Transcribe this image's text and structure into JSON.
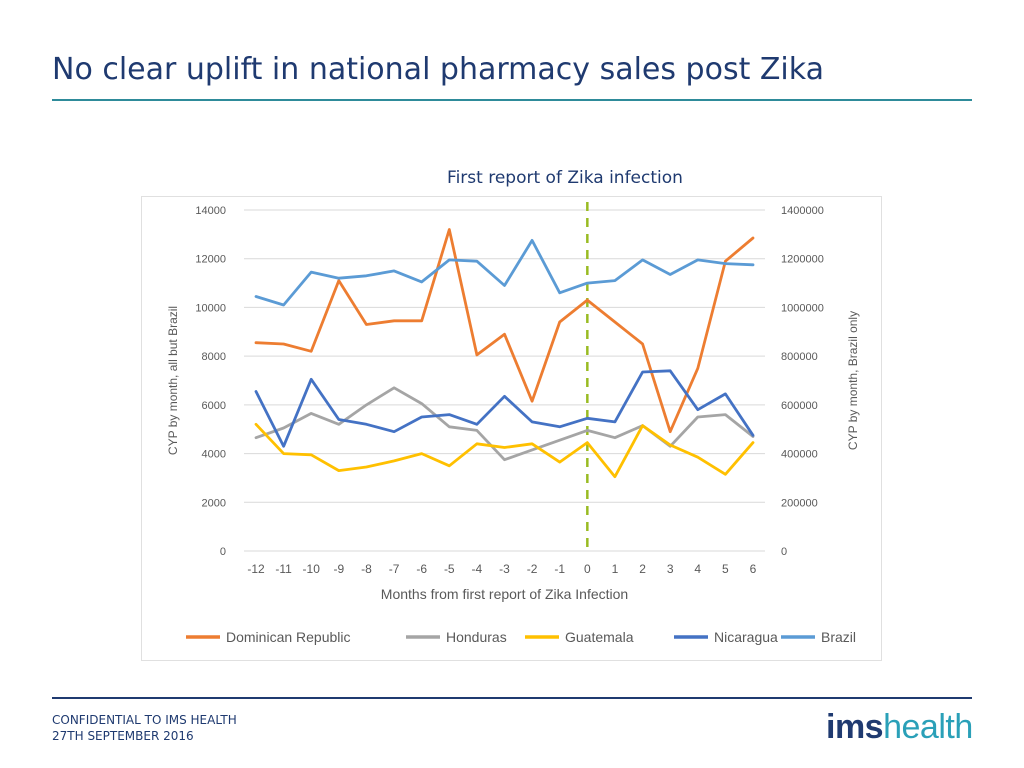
{
  "slide": {
    "title": "No clear uplift in national pharmacy sales post Zika",
    "footer_line1": "CONFIDENTIAL TO IMS HEALTH",
    "footer_line2": "27TH SEPTEMBER 2016",
    "logo_part1": "ims",
    "logo_part2": "health",
    "colors": {
      "title": "#1f3a70",
      "rule": "#2e8b9a",
      "logo_accent": "#2aa0b8"
    }
  },
  "chart_data": {
    "type": "line",
    "annotation": "First report of Zika infection",
    "xlabel": "Months from first report of Zika Infection",
    "ylabel_left": "CYP by month, all but Brazil",
    "ylabel_right": "CYP by month, Brazil only",
    "x": [
      -12,
      -11,
      -10,
      -9,
      -8,
      -7,
      -6,
      -5,
      -4,
      -3,
      -2,
      -1,
      0,
      1,
      2,
      3,
      4,
      5,
      6
    ],
    "x_tick_labels": [
      "-12",
      "-11",
      "-10",
      "-9",
      "-8",
      "-7",
      "-6",
      "-5",
      "-4",
      "-3",
      "-2",
      "-1",
      "0",
      "1",
      "2",
      "3",
      "4",
      "5",
      "6"
    ],
    "ylim_left": [
      0,
      14000
    ],
    "ylim_right": [
      0,
      1400000
    ],
    "y_ticks_left": [
      "0",
      "2000",
      "4000",
      "6000",
      "8000",
      "10000",
      "12000",
      "14000"
    ],
    "y_ticks_right": [
      "0",
      "200000",
      "400000",
      "600000",
      "800000",
      "1000000",
      "1200000",
      "1400000"
    ],
    "grid": true,
    "legend_position": "bottom",
    "marker_line": {
      "x": 0,
      "color": "#99bb22"
    },
    "series": [
      {
        "name": "Dominican Republic",
        "axis": "left",
        "color": "#ed7d31",
        "values": [
          8550,
          8500,
          8200,
          11100,
          9300,
          9450,
          9450,
          13200,
          8050,
          8900,
          6150,
          9400,
          10300,
          9400,
          8500,
          4900,
          7500,
          11900,
          12850
        ]
      },
      {
        "name": "Honduras",
        "axis": "left",
        "color": "#a5a5a5",
        "values": [
          4650,
          5050,
          5650,
          5200,
          6000,
          6700,
          6050,
          5100,
          4950,
          3750,
          4150,
          4550,
          4950,
          4650,
          5150,
          4300,
          5500,
          5600,
          4700
        ]
      },
      {
        "name": "Guatemala",
        "axis": "left",
        "color": "#ffc000",
        "values": [
          5200,
          4000,
          3950,
          3300,
          3450,
          3700,
          4000,
          3500,
          4400,
          4250,
          4400,
          3650,
          4450,
          3050,
          5150,
          4350,
          3850,
          3150,
          4450
        ]
      },
      {
        "name": "Nicaragua",
        "axis": "left",
        "color": "#4472c4",
        "values": [
          6550,
          4300,
          7050,
          5400,
          5200,
          4900,
          5500,
          5600,
          5200,
          6350,
          5300,
          5100,
          5450,
          5300,
          7350,
          7400,
          5800,
          6450,
          4750
        ]
      },
      {
        "name": "Brazil",
        "axis": "right",
        "color": "#5b9bd5",
        "values": [
          1045000,
          1010000,
          1145000,
          1120000,
          1130000,
          1150000,
          1105000,
          1195000,
          1190000,
          1090000,
          1275000,
          1060000,
          1100000,
          1110000,
          1195000,
          1135000,
          1195000,
          1180000,
          1175000
        ]
      }
    ]
  }
}
